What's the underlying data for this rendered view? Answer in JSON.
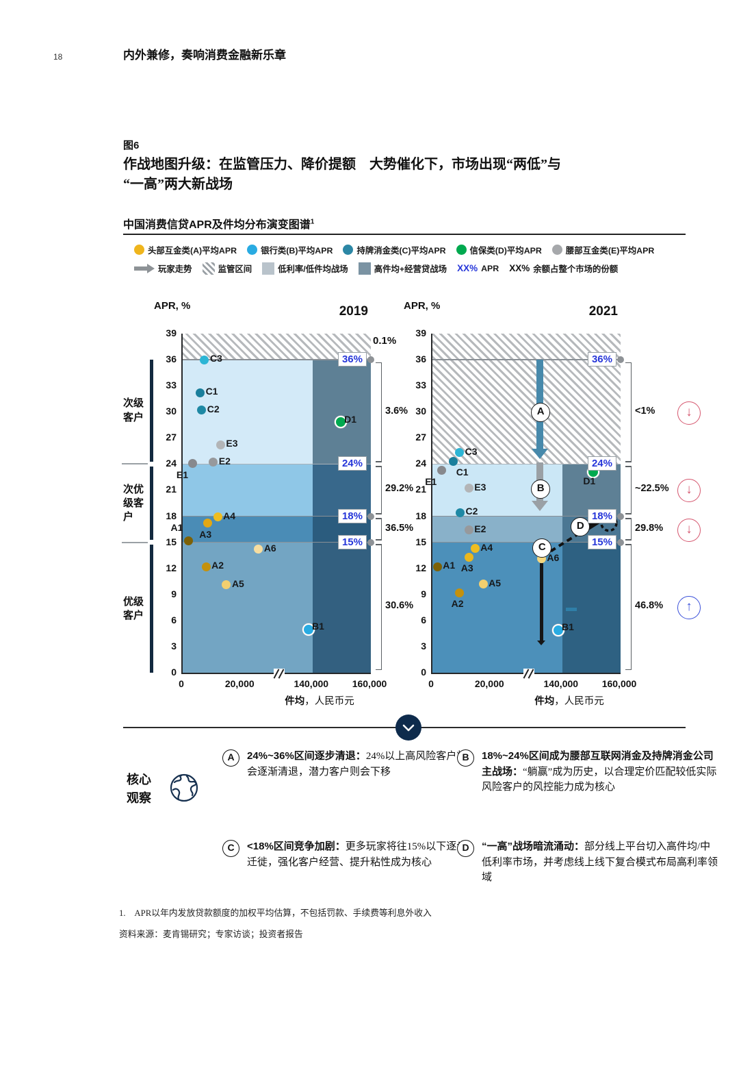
{
  "page": {
    "number": "18",
    "header_title": "内外兼修，奏响消费金融新乐章"
  },
  "figure": {
    "label": "图6",
    "title_line1": "作战地图升级：在监管压力、降价提额　大势催化下，市场出现“两低”与",
    "title_line2": "“一高”两大新战场",
    "subtitle": "中国消费信贷APR及件均分布演变图谱",
    "subtitle_sup": "1"
  },
  "legend": {
    "series": [
      {
        "label": "头部互金类(A)平均APR",
        "color": "#efb51d"
      },
      {
        "label": "银行类(B)平均APR",
        "color": "#29abe2"
      },
      {
        "label": "持牌消金类(C)平均APR",
        "color": "#2c87a5"
      },
      {
        "label": "信保类(D)平均APR",
        "color": "#00a94f"
      },
      {
        "label": "腰部互金类(E)平均APR",
        "color": "#a6a8ab"
      }
    ],
    "markers": [
      {
        "type": "arrow",
        "label": "玩家走势",
        "color": "#8d9296"
      },
      {
        "type": "hatch",
        "label": "监管区间"
      },
      {
        "type": "sq",
        "label": "低利率/低件均战场",
        "color": "#b9c3cb"
      },
      {
        "type": "sq",
        "label": "高件均+经营贷战场",
        "color": "#7b93a3"
      },
      {
        "type": "xx",
        "prefix": "XX%",
        "prefix_color": "#2636d9",
        "label": "APR"
      },
      {
        "type": "xx",
        "prefix": "XX%",
        "prefix_color": "#111111",
        "label": "余额占整个市场的份额"
      }
    ]
  },
  "regions": {
    "segments": [
      {
        "label_lines": [
          "次级",
          "客户"
        ],
        "from": 24.3,
        "to": 36
      },
      {
        "label_lines": [
          "次优",
          "级客",
          "户"
        ],
        "from": 15.3,
        "to": 23.7
      },
      {
        "label_lines": [
          "优级",
          "客户"
        ],
        "from": 0,
        "to": 14.7
      }
    ],
    "separators": [
      24,
      15
    ]
  },
  "chart_data": [
    {
      "type": "scatter",
      "year": "2019",
      "ylabel": "APR, %",
      "xlabel_bold": "件均",
      "xlabel_rest": "，人民币元",
      "ylim": [
        0,
        39
      ],
      "yticks": [
        "39",
        "36",
        "33",
        "30",
        "27",
        "24",
        "21",
        "18",
        "15",
        "12",
        "9",
        "6",
        "3",
        "0"
      ],
      "xticks": [
        {
          "v": 0,
          "label": "0"
        },
        {
          "v": 20000,
          "label": "20,000"
        },
        {
          "v": 140000,
          "label": "140,000"
        },
        {
          "v": 160000,
          "label": "160,000"
        }
      ],
      "bands": [
        {
          "from": 24,
          "to": 36,
          "color": "#d3eaf8"
        },
        {
          "from": 18,
          "to": 24,
          "color": "#8fc7e7"
        },
        {
          "from": 15,
          "to": 18,
          "color": "#4a8cb6"
        },
        {
          "from": 0,
          "to": 15,
          "color": "#73a5c3"
        }
      ],
      "hatch": {
        "from": 36,
        "to": 39
      },
      "column": {
        "x_from": 140000,
        "segments": [
          {
            "from": 24,
            "to": 36,
            "color": "#5e8095"
          },
          {
            "from": 18,
            "to": 24,
            "color": "#38688b"
          },
          {
            "from": 15,
            "to": 18,
            "color": "#2b5c7e"
          },
          {
            "from": 0,
            "to": 15,
            "color": "#336080"
          }
        ]
      },
      "gridlines": [
        {
          "apr": 36,
          "w": 1.5,
          "color": "#8a9096"
        },
        {
          "apr": 24,
          "w": 1,
          "color": "#aab2b8"
        },
        {
          "apr": 18,
          "w": 1.5,
          "color": "#8a9096"
        },
        {
          "apr": 15,
          "w": 1.5,
          "color": "#8a9096"
        }
      ],
      "apr_labels": [
        {
          "text": "36%",
          "apr": 36
        },
        {
          "text": "24%",
          "apr": 24
        },
        {
          "text": "18%",
          "apr": 18
        },
        {
          "text": "15%",
          "apr": 15
        }
      ],
      "edge_dots": [
        36,
        18,
        15
      ],
      "top_share": "0.1%",
      "points": [
        {
          "id": "C3",
          "x": 7500,
          "apr": 36,
          "color": "#2cb5d5",
          "lp": "r"
        },
        {
          "id": "C1",
          "x": 6000,
          "apr": 32.2,
          "color": "#1a7f9c",
          "lp": "r"
        },
        {
          "id": "C2",
          "x": 6500,
          "apr": 30.2,
          "color": "#1e88a4",
          "lp": "r"
        },
        {
          "id": "D1",
          "x": 149000,
          "apr": 29,
          "color": "#00a94f",
          "lp": "r",
          "ring": true
        },
        {
          "id": "E3",
          "x": 13000,
          "apr": 26.2,
          "color": "#b3b5b7",
          "lp": "r"
        },
        {
          "id": "E2",
          "x": 10500,
          "apr": 24.2,
          "color": "#97999c",
          "lp": "r"
        },
        {
          "id": "E1",
          "x": 3500,
          "apr": 24.1,
          "color": "#87898d",
          "lp": "bl"
        },
        {
          "id": "A4",
          "x": 12000,
          "apr": 17.9,
          "color": "#efbd20",
          "lp": "r"
        },
        {
          "id": "A3",
          "x": 8500,
          "apr": 17.2,
          "color": "#e2a713",
          "lp": "b"
        },
        {
          "id": "A1",
          "x": 2000,
          "apr": 15.2,
          "color": "#7d6106",
          "lp": "t"
        },
        {
          "id": "A6",
          "x": 26000,
          "apr": 14.2,
          "color": "#f6dda0",
          "lp": "r"
        },
        {
          "id": "A2",
          "x": 8000,
          "apr": 12.2,
          "color": "#c4910d",
          "lp": "r"
        },
        {
          "id": "A5",
          "x": 15000,
          "apr": 10.1,
          "color": "#f3cf6e",
          "lp": "r"
        },
        {
          "id": "B1",
          "x": 120000,
          "apr": 5.2,
          "color": "#29abe2",
          "lp": "r",
          "ring": true
        }
      ],
      "brackets": [
        {
          "from": 24.2,
          "to": 35.7,
          "label": "3.6%"
        },
        {
          "from": 18.2,
          "to": 23.8,
          "label": "29.2%"
        },
        {
          "from": 15.2,
          "to": 17.8,
          "label": "36.5%"
        },
        {
          "from": 0.3,
          "to": 14.8,
          "label": "30.6%"
        }
      ]
    },
    {
      "type": "scatter",
      "year": "2021",
      "ylabel": "APR, %",
      "xlabel_bold": "件均",
      "xlabel_rest": "，人民币元",
      "ylim": [
        0,
        39
      ],
      "yticks": [
        "39",
        "36",
        "33",
        "30",
        "27",
        "24",
        "21",
        "18",
        "15",
        "12",
        "9",
        "6",
        "3",
        "0"
      ],
      "xticks": [
        {
          "v": 0,
          "label": "0"
        },
        {
          "v": 20000,
          "label": "20,000"
        },
        {
          "v": 140000,
          "label": "140,000"
        },
        {
          "v": 160000,
          "label": "160,000"
        }
      ],
      "bands": [
        {
          "from": 18,
          "to": 24,
          "color": "#cbe7f6"
        },
        {
          "from": 15,
          "to": 18,
          "color": "#89b1c9"
        },
        {
          "from": 0,
          "to": 15,
          "color": "#4c90ba"
        }
      ],
      "hatch": {
        "from": 24,
        "to": 39
      },
      "column": {
        "x_from": 140000,
        "segments": [
          {
            "from": 18,
            "to": 24,
            "color": "#5e8095"
          },
          {
            "from": 15,
            "to": 18,
            "color": "#4b7793"
          },
          {
            "from": 0,
            "to": 15,
            "color": "#2e6182"
          }
        ]
      },
      "gridlines": [
        {
          "apr": 36,
          "w": 1.5,
          "color": "#8a9096"
        },
        {
          "apr": 24,
          "w": 1,
          "color": "#aab2b8"
        },
        {
          "apr": 18,
          "w": 1.5,
          "color": "#8a9096"
        },
        {
          "apr": 15,
          "w": 1.5,
          "color": "#8a9096"
        }
      ],
      "apr_labels": [
        {
          "text": "36%",
          "apr": 36
        },
        {
          "text": "24%",
          "apr": 24
        },
        {
          "text": "18%",
          "apr": 18
        },
        {
          "text": "15%",
          "apr": 15
        }
      ],
      "edge_dots": [
        36,
        18,
        15
      ],
      "points": [
        {
          "id": "C3",
          "x": 9300,
          "apr": 25.3,
          "color": "#2cb5d5",
          "lp": "r"
        },
        {
          "id": "C1",
          "x": 7200,
          "apr": 24.3,
          "color": "#1a7f9c",
          "lp": "br"
        },
        {
          "id": "E1",
          "x": 3100,
          "apr": 23.3,
          "color": "#87898d",
          "lp": "bl"
        },
        {
          "id": "E3",
          "x": 12500,
          "apr": 21.2,
          "color": "#b3b5b7",
          "lp": "r"
        },
        {
          "id": "C2",
          "x": 9500,
          "apr": 18.4,
          "color": "#1e88a4",
          "lp": "r"
        },
        {
          "id": "E2",
          "x": 12500,
          "apr": 16.4,
          "color": "#97999c",
          "lp": "r"
        },
        {
          "id": "A4",
          "x": 14600,
          "apr": 14.3,
          "color": "#efbd20",
          "lp": "r"
        },
        {
          "id": "A3",
          "x": 12600,
          "apr": 13.3,
          "color": "#eab71e",
          "lp": "b"
        },
        {
          "id": "A1",
          "x": 1700,
          "apr": 12.2,
          "color": "#7d6106",
          "lp": "r"
        },
        {
          "id": "A6",
          "x": 70000,
          "apr": 13.1,
          "color": "#f5d77e",
          "lp": "r"
        },
        {
          "id": "A5",
          "x": 17400,
          "apr": 10.2,
          "color": "#f3cf6e",
          "lp": "r"
        },
        {
          "id": "A2",
          "x": 9300,
          "apr": 9.2,
          "color": "#c4910d",
          "lp": "b"
        },
        {
          "id": "B1",
          "x": 120000,
          "apr": 5.1,
          "color": "#29abe2",
          "lp": "r",
          "ring": true
        },
        {
          "id": "D1",
          "x": 150000,
          "apr": 23.3,
          "color": "#00a94f",
          "lp": "b",
          "ring": true
        }
      ],
      "dash_mark": {
        "x": 143000,
        "apr": 7.3,
        "color": "#2f7fa8"
      },
      "arrows": [
        {
          "x": 65000,
          "from": 36,
          "to": 24.6,
          "color": "#4789ab",
          "w": 10
        },
        {
          "x": 65000,
          "from": 24.2,
          "to": 18.6,
          "color": "#9aa0a5",
          "w": 10
        },
        {
          "x": 70000,
          "from": 12.6,
          "to": 3.1,
          "color": "#161616",
          "w": 5
        }
      ],
      "letter_markers": [
        {
          "t": "A",
          "x": 65000,
          "apr": 30
        },
        {
          "t": "B",
          "x": 65000,
          "apr": 21.2
        },
        {
          "t": "C",
          "x": 70000,
          "apr": 14.4
        },
        {
          "t": "D",
          "x": 146000,
          "apr": 16.9
        }
      ],
      "dashed_link": {
        "x1": 74000,
        "apr1": 13.4,
        "x2": 156000,
        "apr2": 17.2
      },
      "brackets": [
        {
          "from": 24.2,
          "to": 35.7,
          "label": "<1%",
          "icon": "down",
          "icon_color": "#d5566e"
        },
        {
          "from": 18.2,
          "to": 23.8,
          "label": "~22.5%",
          "icon": "down",
          "icon_color": "#d5566e"
        },
        {
          "from": 15.2,
          "to": 17.8,
          "label": "29.8%",
          "icon": "down",
          "icon_color": "#d5566e"
        },
        {
          "from": 0.3,
          "to": 14.8,
          "label": "46.8%",
          "icon": "up",
          "icon_color": "#3a50d9"
        }
      ]
    }
  ],
  "observations": {
    "heading_line1": "核心",
    "heading_line2": "观察",
    "items": [
      {
        "letter": "A",
        "lead": "24%~36%区间逐步清退：",
        "text": "24%以上高风险客户将会逐渐清退，潜力客户则会下移"
      },
      {
        "letter": "B",
        "lead": "18%~24%区间成为腰部互联网消金及持牌消金公司主战场：",
        "text": "“躺赢”成为历史，以合理定价匹配较低实际风险客户的风控能力成为核心"
      },
      {
        "letter": "C",
        "lead": "<18%区间竞争加剧：",
        "text": "更多玩家将往15%以下逐步迁徙，强化客户经营、提升粘性成为核心"
      },
      {
        "letter": "D",
        "lead": "“一高”战场暗流涌动：",
        "text": "部分线上平台切入高件均/中低利率市场，并考虑线上线下复合模式布局高利率领域"
      }
    ]
  },
  "footnotes": [
    "1.　APR以年内发放贷款额度的加权平均估算，不包括罚款、手续费等利息外收入",
    "资料来源：麦肯锡研究；专家访谈；投资者报告"
  ]
}
